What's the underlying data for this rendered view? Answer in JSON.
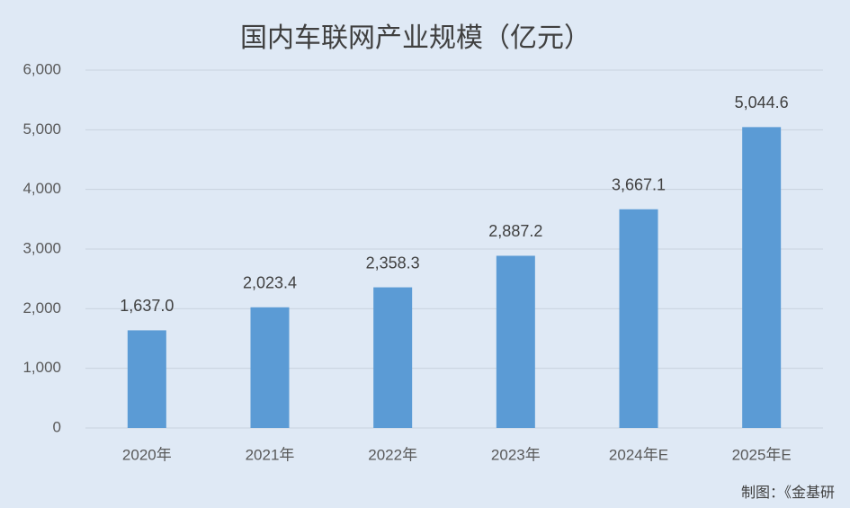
{
  "chart_data": {
    "type": "bar",
    "title": "国内车联网产业规模（亿元）",
    "categories": [
      "2020年",
      "2021年",
      "2022年",
      "2023年",
      "2024年E",
      "2025年E"
    ],
    "values": [
      1637.0,
      2023.4,
      2358.3,
      2887.2,
      3667.1,
      5044.6
    ],
    "value_labels": [
      "1,637.0",
      "2,023.4",
      "2,358.3",
      "2,887.2",
      "3,667.1",
      "5,044.6"
    ],
    "color": "#5b9bd5",
    "ylim": [
      0,
      6000
    ],
    "yticks": [
      0,
      {
        "value": 1000,
        "label": "1,000"
      },
      {
        "value": 2000,
        "label": "2,000"
      },
      {
        "value": 3000,
        "label": "3,000"
      },
      {
        "value": 4000,
        "label": "4,000"
      },
      {
        "value": 5000,
        "label": "5,000"
      },
      {
        "value": 6000,
        "label": "6,000"
      }
    ],
    "grid": true,
    "source": "制图：《金基研"
  }
}
